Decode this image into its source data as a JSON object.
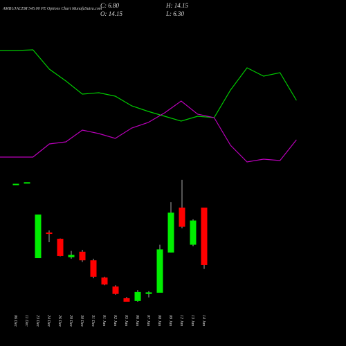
{
  "chart_data": [
    {
      "type": "candlestick",
      "title": "AMBUJACEM 545.00  PE Options  Chart MunafaSutra.com",
      "ohlc_labels": [
        "C: 6.80",
        "H: 14.15",
        "O: 14.15",
        "L: 6.30"
      ],
      "categories": [
        "06 Dec",
        "11 Dec",
        "23 Dec",
        "24 Dec",
        "26 Dec",
        "29 Dec",
        "30 Dec",
        "31 Dec",
        "01 Jan",
        "02 Jan",
        "05 Jan",
        "06 Jan",
        "07 Jan",
        "08 Jan",
        "09 Jan",
        "12 Jan",
        "13 Jan",
        "14 Jan"
      ],
      "open": [
        17.2,
        17.4,
        7.68,
        10.96,
        10.16,
        7.8,
        8.5,
        7.4,
        5.2,
        4.05,
        2.55,
        2.2,
        3.1,
        3.25,
        8.4,
        14.15,
        9.4,
        14.15
      ],
      "high": [
        17.2,
        17.4,
        13.26,
        11.23,
        10.2,
        8.6,
        8.75,
        7.6,
        5.3,
        4.2,
        2.7,
        3.6,
        3.45,
        9.4,
        14.85,
        17.7,
        12.65,
        14.15
      ],
      "low": [
        17.2,
        17.4,
        7.68,
        9.72,
        7.9,
        7.6,
        7.2,
        5.1,
        4.2,
        3.0,
        2.1,
        2.1,
        2.65,
        3.25,
        8.4,
        11.5,
        9.2,
        6.3
      ],
      "close": [
        17.2,
        17.4,
        13.26,
        10.78,
        7.95,
        8.1,
        7.4,
        5.3,
        4.3,
        3.1,
        2.1,
        3.35,
        3.3,
        8.8,
        13.5,
        11.7,
        12.5,
        6.8
      ],
      "up_color": "#00ee00",
      "down_color": "#ff0000",
      "ylim": [
        0.86,
        18.58
      ]
    },
    {
      "type": "line",
      "series": [
        {
          "color": "#00cc00",
          "values": [
            93.5,
            93.5,
            94,
            80,
            71.5,
            62,
            63,
            60.5,
            53.5,
            49.5,
            46,
            42.5,
            46,
            45,
            65,
            81,
            75,
            77.5,
            57.5
          ]
        },
        {
          "color": "#bb00bb",
          "values": [
            16.5,
            16.5,
            16.5,
            26,
            27.5,
            36,
            33.5,
            30,
            37.5,
            41.5,
            48.5,
            57,
            47.5,
            45,
            25,
            13,
            15,
            14,
            29
          ]
        }
      ],
      "ylim": [
        0,
        100
      ]
    }
  ]
}
